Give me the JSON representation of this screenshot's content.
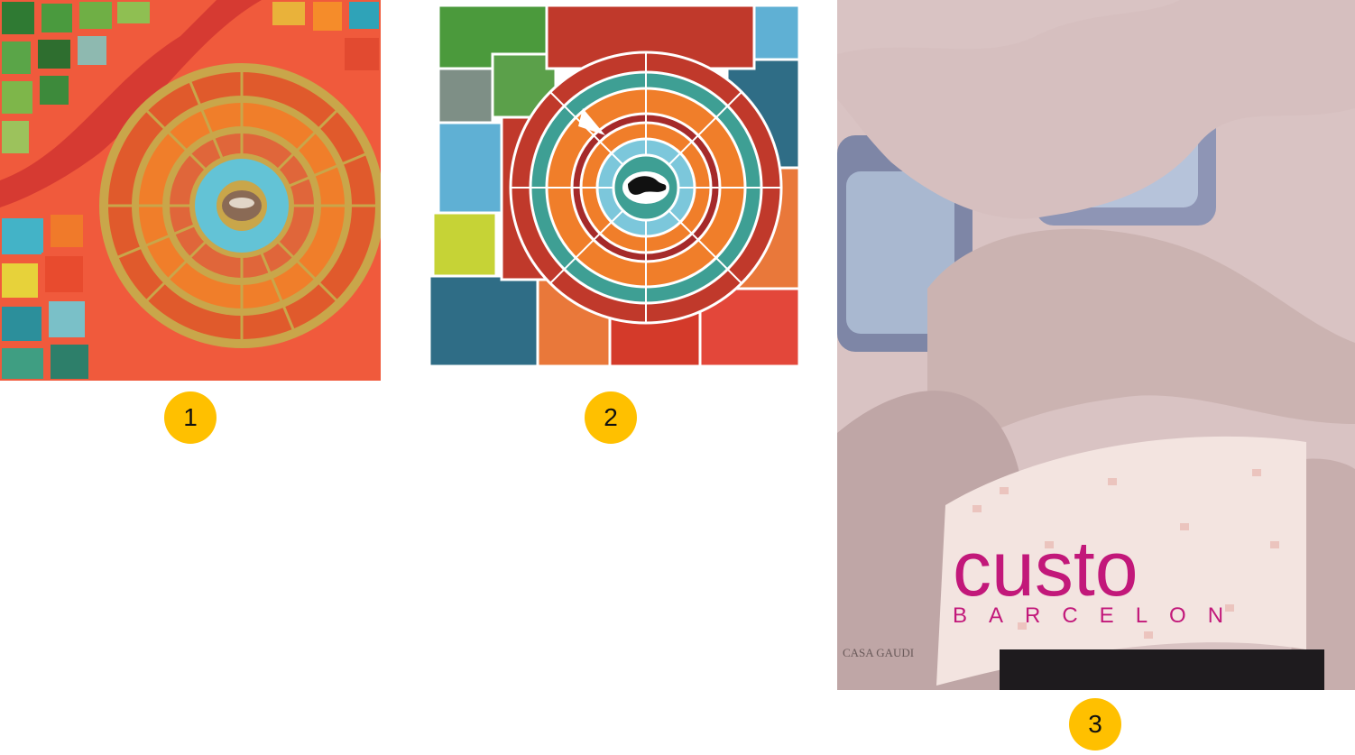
{
  "panels": [
    {
      "label": "1",
      "subject": "mosaic-spiral-photo"
    },
    {
      "label": "2",
      "subject": "vectorized-mosaic-illustration"
    },
    {
      "label": "3",
      "subject": "casa-batllo-facade-photo"
    }
  ],
  "facade_sign": {
    "brand": "custo",
    "city": "BARCELON",
    "small_text": "CASA GAUDI"
  },
  "colors": {
    "badge": "#FFC000",
    "brand_magenta": "#C2187A",
    "grout_gold": "#C9A64A",
    "mortar_red": "#F0563A"
  }
}
